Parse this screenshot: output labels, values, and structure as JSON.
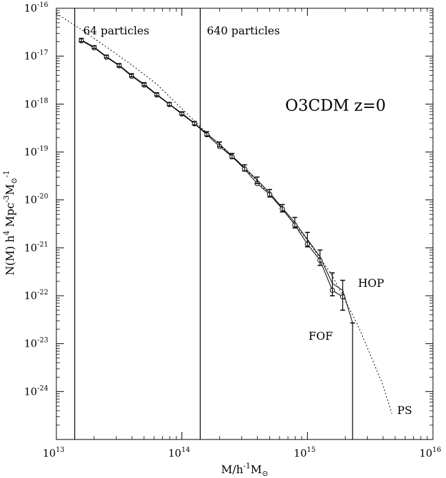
{
  "chart_data": {
    "type": "line",
    "title": "O3CDM z=0",
    "xlabel": "M/h",
    "xlabel_sup": "-1",
    "xlabel_tail": "M",
    "xlabel_sub": "⊙",
    "ylabel_parts": [
      "N(M) h",
      "4",
      " Mpc",
      "-3",
      "M",
      "⊙",
      "-1"
    ],
    "xscale": "log",
    "yscale": "log",
    "xlim": [
      10000000000000.0,
      1e+16
    ],
    "ylim": [
      1e-25,
      1e-16
    ],
    "x_ticks": [
      {
        "value": 10000000000000.0,
        "base": "10",
        "exp": "13"
      },
      {
        "value": 100000000000000.0,
        "base": "10",
        "exp": "14"
      },
      {
        "value": 1000000000000000.0,
        "base": "10",
        "exp": "15"
      },
      {
        "value": 1e+16,
        "base": "10",
        "exp": "16"
      }
    ],
    "y_ticks": [
      {
        "value": 1e-16,
        "base": "10",
        "exp": "-16"
      },
      {
        "value": 1e-17,
        "base": "10",
        "exp": "-17"
      },
      {
        "value": 1e-18,
        "base": "10",
        "exp": "-18"
      },
      {
        "value": 1e-19,
        "base": "10",
        "exp": "-19"
      },
      {
        "value": 1e-20,
        "base": "10",
        "exp": "-20"
      },
      {
        "value": 1e-21,
        "base": "10",
        "exp": "-21"
      },
      {
        "value": 1e-22,
        "base": "10",
        "exp": "-22"
      },
      {
        "value": 1e-23,
        "base": "10",
        "exp": "-23"
      },
      {
        "value": 1e-24,
        "base": "10",
        "exp": "-24"
      }
    ],
    "vlines": [
      {
        "x": 14000000000000.0,
        "label": "64 particles"
      },
      {
        "x": 140000000000000.0,
        "label": "640 particles"
      }
    ],
    "series": [
      {
        "name": "FOF",
        "marker": "circle",
        "style": "solid",
        "points": [
          {
            "x": 15800000000000.0,
            "y": 2.1e-17
          },
          {
            "x": 20000000000000.0,
            "y": 1.5e-17
          },
          {
            "x": 25100000000000.0,
            "y": 9.5e-18
          },
          {
            "x": 31600000000000.0,
            "y": 6.3e-18
          },
          {
            "x": 39800000000000.0,
            "y": 3.8e-18
          },
          {
            "x": 50100000000000.0,
            "y": 2.5e-18
          },
          {
            "x": 63100000000000.0,
            "y": 1.55e-18
          },
          {
            "x": 79400000000000.0,
            "y": 9.8e-19
          },
          {
            "x": 100000000000000.0,
            "y": 6.2e-19
          },
          {
            "x": 126000000000000.0,
            "y": 3.9e-19
          },
          {
            "x": 158000000000000.0,
            "y": 2.3e-19
          },
          {
            "x": 200000000000000.0,
            "y": 1.3e-19
          },
          {
            "x": 251000000000000.0,
            "y": 8e-20
          },
          {
            "x": 316000000000000.0,
            "y": 4.4e-20
          },
          {
            "x": 398000000000000.0,
            "y": 2.2e-20
          },
          {
            "x": 501000000000000.0,
            "y": 1.3e-20
          },
          {
            "x": 631000000000000.0,
            "y": 6.5e-21
          },
          {
            "x": 794000000000000.0,
            "y": 3e-21
          },
          {
            "x": 1000000000000000.0,
            "y": 1.2e-21
          },
          {
            "x": 1260000000000000.0,
            "y": 5.5e-22
          },
          {
            "x": 1580000000000000.0,
            "y": 1.3e-22
          },
          {
            "x": 1910000000000000.0,
            "y": 9.5e-23
          }
        ]
      },
      {
        "name": "HOP",
        "marker": "errorbar",
        "style": "solid",
        "points": [
          {
            "x": 15800000000000.0,
            "y": 2.2e-17,
            "lo": 2e-17,
            "hi": 2.35e-17
          },
          {
            "x": 20000000000000.0,
            "y": 1.55e-17,
            "lo": 1.45e-17,
            "hi": 1.65e-17
          },
          {
            "x": 25100000000000.0,
            "y": 9.8e-18,
            "lo": 9.2e-18,
            "hi": 1.05e-17
          },
          {
            "x": 31600000000000.0,
            "y": 6.5e-18,
            "lo": 6e-18,
            "hi": 7e-18
          },
          {
            "x": 39800000000000.0,
            "y": 4e-18,
            "lo": 3.7e-18,
            "hi": 4.3e-18
          },
          {
            "x": 50100000000000.0,
            "y": 2.6e-18,
            "lo": 2.4e-18,
            "hi": 2.8e-18
          },
          {
            "x": 63100000000000.0,
            "y": 1.6e-18,
            "lo": 1.48e-18,
            "hi": 1.72e-18
          },
          {
            "x": 79400000000000.0,
            "y": 1e-18,
            "lo": 9.2e-19,
            "hi": 1.08e-18
          },
          {
            "x": 100000000000000.0,
            "y": 6.4e-19,
            "lo": 5.9e-19,
            "hi": 6.9e-19
          },
          {
            "x": 126000000000000.0,
            "y": 4e-19,
            "lo": 3.65e-19,
            "hi": 4.35e-19
          },
          {
            "x": 158000000000000.0,
            "y": 2.4e-19,
            "lo": 2.15e-19,
            "hi": 2.65e-19
          },
          {
            "x": 200000000000000.0,
            "y": 1.45e-19,
            "lo": 1.28e-19,
            "hi": 1.62e-19
          },
          {
            "x": 251000000000000.0,
            "y": 8.3e-20,
            "lo": 7.3e-20,
            "hi": 9.3e-20
          },
          {
            "x": 316000000000000.0,
            "y": 4.7e-20,
            "lo": 4e-20,
            "hi": 5.4e-20
          },
          {
            "x": 398000000000000.0,
            "y": 2.6e-20,
            "lo": 2.2e-20,
            "hi": 3e-20
          },
          {
            "x": 501000000000000.0,
            "y": 1.4e-20,
            "lo": 1.15e-20,
            "hi": 1.65e-20
          },
          {
            "x": 631000000000000.0,
            "y": 6.8e-21,
            "lo": 5.6e-21,
            "hi": 8e-21
          },
          {
            "x": 794000000000000.0,
            "y": 3.4e-21,
            "lo": 2.6e-21,
            "hi": 4.3e-21
          },
          {
            "x": 1000000000000000.0,
            "y": 1.5e-21,
            "lo": 1.05e-21,
            "hi": 2.1e-21
          },
          {
            "x": 1260000000000000.0,
            "y": 6.5e-22,
            "lo": 4.3e-22,
            "hi": 9e-22
          },
          {
            "x": 1580000000000000.0,
            "y": 1.8e-22,
            "lo": 1e-22,
            "hi": 3e-22
          },
          {
            "x": 1910000000000000.0,
            "y": 1.3e-22,
            "lo": 5e-23,
            "hi": 2.1e-22
          },
          {
            "x": 2290000000000000.0,
            "y": 2.7e-23,
            "lo": 1e-25,
            "hi": 2.7e-23
          }
        ]
      },
      {
        "name": "PS",
        "marker": "none",
        "style": "dotted",
        "points": [
          {
            "x": 10000000000000.0,
            "y": 7.8e-17
          },
          {
            "x": 15800000000000.0,
            "y": 3.6e-17
          },
          {
            "x": 25100000000000.0,
            "y": 1.55e-17
          },
          {
            "x": 39800000000000.0,
            "y": 6.6e-18
          },
          {
            "x": 63100000000000.0,
            "y": 2.6e-18
          },
          {
            "x": 100000000000000.0,
            "y": 8e-19
          },
          {
            "x": 158000000000000.0,
            "y": 2.5e-19
          },
          {
            "x": 251000000000000.0,
            "y": 8e-20
          },
          {
            "x": 398000000000000.0,
            "y": 2.5e-20
          },
          {
            "x": 631000000000000.0,
            "y": 6.5e-21
          },
          {
            "x": 1000000000000000.0,
            "y": 1.45e-21
          },
          {
            "x": 1580000000000000.0,
            "y": 2.6e-22
          },
          {
            "x": 2510000000000000.0,
            "y": 2.5e-23
          },
          {
            "x": 3160000000000000.0,
            "y": 6e-24
          },
          {
            "x": 3980000000000000.0,
            "y": 1.4e-24
          },
          {
            "x": 4700000000000000.0,
            "y": 3.5e-25
          }
        ]
      }
    ],
    "annotations": [
      {
        "text": "HOP",
        "series": "HOP"
      },
      {
        "text": "FOF",
        "series": "FOF"
      },
      {
        "text": "PS",
        "series": "PS"
      }
    ]
  }
}
